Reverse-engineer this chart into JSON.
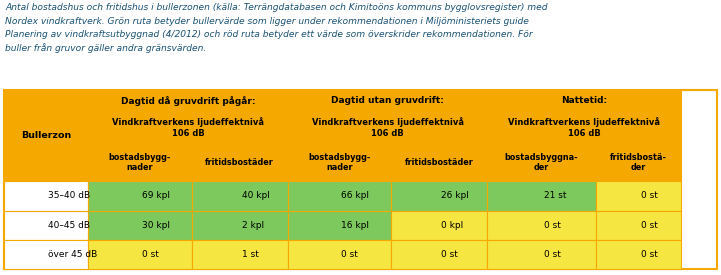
{
  "caption_lines": [
    "Antal bostadshus och fritidshus i bullerzonen (källa: Terrängdatabasen och Kimitoöns kommuns bygglovsregister) med",
    "Nordex vindkraftverk. Grön ruta betyder bullervärde som ligger under rekommendationen i Miljöministeriets guide",
    "Planering av vindkraftsutbyggnad (4/2012) och röd ruta betyder ett värde som överskrider rekommendationen. För",
    "buller från gruvor gäller andra gränsvärden."
  ],
  "caption_color": "#1a5276",
  "header_bg": "#F5A800",
  "row_data_label_bg": "#ffffff",
  "row_labels": [
    "35–40 dB",
    "40–45 dB",
    "över 45 dB"
  ],
  "group_titles": [
    "Dagtid då gruvdrift pågår:",
    "Dagtid utan gruvdrift:",
    "Nattetid:"
  ],
  "subtitle": "Vindkraftverkens ljudeffektnivå\n106 dB",
  "sub_col_labels": [
    "bostadsbygg-\nnader",
    "fritidsbostäder",
    "bostadsbygg-\nnader",
    "fritidsbostäder",
    "bostadsbyggna-\nder",
    "fritidsbostä-\nder"
  ],
  "row_header": "Bullerzon",
  "data": [
    [
      "69 kpl",
      "40 kpl",
      "66 kpl",
      "26 kpl",
      "21 st",
      "0 st"
    ],
    [
      "30 kpl",
      "2 kpl",
      "16 kpl",
      "0 kpl",
      "0 st",
      "0 st"
    ],
    [
      "0 st",
      "1 st",
      "0 st",
      "0 st",
      "0 st",
      "0 st"
    ]
  ],
  "cell_colors": [
    [
      "#7DC95E",
      "#7DC95E",
      "#7DC95E",
      "#7DC95E",
      "#7DC95E",
      "#F5E642"
    ],
    [
      "#7DC95E",
      "#7DC95E",
      "#7DC95E",
      "#F5E642",
      "#F5E642",
      "#F5E642"
    ],
    [
      "#F5E642",
      "#F5E642",
      "#F5E642",
      "#F5E642",
      "#F5E642",
      "#F5E642"
    ]
  ],
  "border_color": "#F5A800",
  "data_border_color": "#cccccc",
  "fig_bg": "#ffffff",
  "col_props": [
    0.118,
    0.145,
    0.135,
    0.145,
    0.135,
    0.152,
    0.12
  ]
}
